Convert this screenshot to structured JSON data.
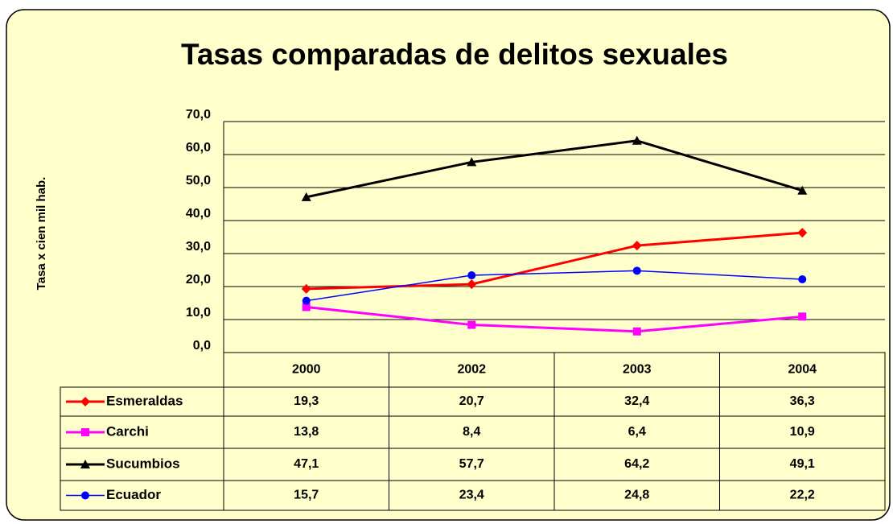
{
  "chart_data": {
    "type": "line",
    "title": "Tasas comparadas de delitos sexuales",
    "y_label": "Tasa x cien mil hab.",
    "categories": [
      "2000",
      "2002",
      "2003",
      "2004"
    ],
    "series": [
      {
        "name": "Esmeraldas",
        "color": "#ff0000",
        "marker": "diamond",
        "values": [
          19.3,
          20.7,
          32.4,
          36.3
        ],
        "value_labels": [
          "19,3",
          "20,7",
          "32,4",
          "36,3"
        ]
      },
      {
        "name": "Carchi",
        "color": "#ff00ff",
        "marker": "square",
        "values": [
          13.8,
          8.4,
          6.4,
          10.9
        ],
        "value_labels": [
          "13,8",
          "8,4",
          "6,4",
          "10,9"
        ]
      },
      {
        "name": "Sucumbios",
        "color": "#000000",
        "marker": "triangle",
        "values": [
          47.1,
          57.7,
          64.2,
          49.1
        ],
        "value_labels": [
          "47,1",
          "57,7",
          "64,2",
          "49,1"
        ]
      },
      {
        "name": "Ecuador",
        "color": "#0000ff",
        "marker": "circle",
        "values": [
          15.7,
          23.4,
          24.8,
          22.2
        ],
        "value_labels": [
          "15,7",
          "23,4",
          "24,8",
          "22,2"
        ]
      }
    ],
    "ylim": [
      0,
      70
    ],
    "yticks": [
      {
        "value": 0,
        "label": "0,0"
      },
      {
        "value": 10,
        "label": "10,0"
      },
      {
        "value": 20,
        "label": "20,0"
      },
      {
        "value": 30,
        "label": "30,0"
      },
      {
        "value": 40,
        "label": "40,0"
      },
      {
        "value": 50,
        "label": "50,0"
      },
      {
        "value": 60,
        "label": "60,0"
      },
      {
        "value": 70,
        "label": "70,0"
      }
    ],
    "grid": true
  }
}
